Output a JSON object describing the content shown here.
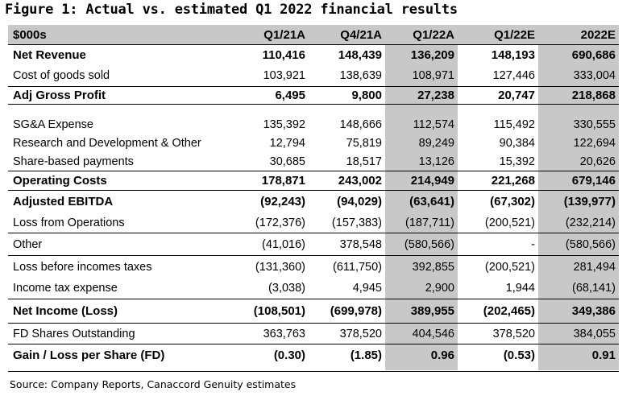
{
  "title": "Figure 1: Actual vs. estimated Q1 2022 financial results",
  "columns": [
    "$000s",
    "Q1/21A",
    "Q4/21A",
    "Q1/22A",
    "Q1/22E",
    "2022E"
  ],
  "rows": [
    {
      "label": "Net Revenue",
      "values": [
        "110,416",
        "148,439",
        "136,209",
        "148,193",
        "690,686"
      ]
    },
    {
      "label": "Cost of goods sold",
      "values": [
        "103,921",
        "138,639",
        "108,971",
        "127,446",
        "333,004"
      ]
    },
    {
      "label": "Adj Gross Profit",
      "values": [
        "6,495",
        "9,800",
        "27,238",
        "20,747",
        "218,868"
      ]
    },
    {
      "label": "SG&A Expense",
      "values": [
        "135,392",
        "148,666",
        "112,574",
        "115,492",
        "330,555"
      ]
    },
    {
      "label": "Research and Development & Other",
      "values": [
        "12,794",
        "75,819",
        "89,249",
        "90,384",
        "122,694"
      ]
    },
    {
      "label": "Share-based payments",
      "values": [
        "30,685",
        "18,517",
        "13,126",
        "15,392",
        "20,626"
      ]
    },
    {
      "label": "Operating Costs",
      "values": [
        "178,871",
        "243,002",
        "214,949",
        "221,268",
        "679,146"
      ]
    },
    {
      "label": "Adjusted EBITDA",
      "values": [
        "(92,243)",
        "(94,029)",
        "(63,641)",
        "(67,302)",
        "(139,977)"
      ]
    },
    {
      "label": "Loss from Operations",
      "values": [
        "(172,376)",
        "(157,383)",
        "(187,711)",
        "(200,521)",
        "(232,214)"
      ]
    },
    {
      "label": "Other",
      "values": [
        "(41,016)",
        "378,548",
        "(580,566)",
        "-",
        "(580,566)"
      ]
    },
    {
      "label": "Loss before incomes taxes",
      "values": [
        "(131,360)",
        "(611,750)",
        "392,855",
        "(200,521)",
        "281,494"
      ]
    },
    {
      "label": "Income tax expense",
      "values": [
        "(3,038)",
        "4,945",
        "2,900",
        "1,944",
        "(68,141)"
      ]
    },
    {
      "label": "Net Income (Loss)",
      "values": [
        "(108,501)",
        "(699,978)",
        "389,955",
        "(202,465)",
        "349,386"
      ]
    },
    {
      "label": "FD Shares Outstanding",
      "values": [
        "363,763",
        "378,520",
        "404,546",
        "378,520",
        "384,055"
      ]
    },
    {
      "label": "Gain / Loss per Share (FD)",
      "values": [
        "(0.30)",
        "(1.85)",
        "0.96",
        "(0.53)",
        "0.91"
      ]
    }
  ],
  "source": "Source: Company Reports, Canaccord Genuity estimates",
  "colors": {
    "highlight": "#c8c8c8"
  }
}
